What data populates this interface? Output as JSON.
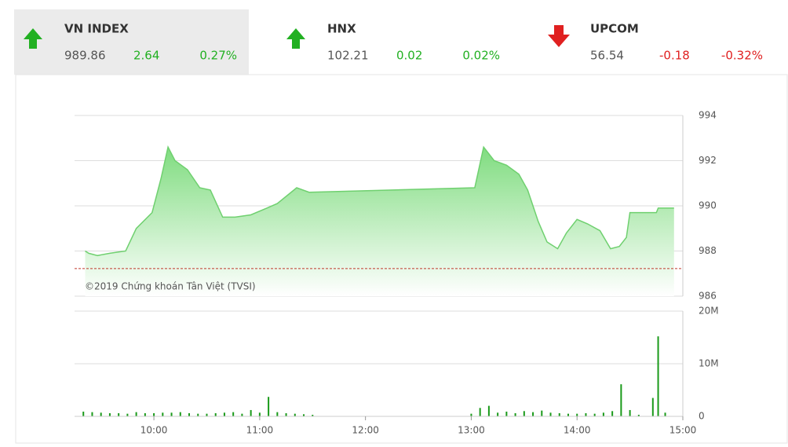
{
  "indices": [
    {
      "name": "VN INDEX",
      "value": "989.86",
      "change": "2.64",
      "percent": "0.27%",
      "direction": "up",
      "color": "#22b022"
    },
    {
      "name": "HNX",
      "value": "102.21",
      "change": "0.02",
      "percent": "0.02%",
      "direction": "up",
      "color": "#22b022"
    },
    {
      "name": "UPCOM",
      "value": "56.54",
      "change": "-0.18",
      "percent": "-0.32%",
      "direction": "down",
      "color": "#e02020"
    }
  ],
  "chart_data": [
    {
      "type": "area",
      "annotation": "©2019 Chứng khoán Tân Việt (TVSI)",
      "x": [
        "09:21",
        "09:23",
        "09:28",
        "09:35",
        "09:44",
        "09:50",
        "09:59",
        "10:04",
        "10:08",
        "10:12",
        "10:19",
        "10:26",
        "10:32",
        "10:39",
        "10:46",
        "10:55",
        "11:04",
        "11:10",
        "11:21",
        "11:28",
        "13:02",
        "13:07",
        "13:13",
        "13:20",
        "13:27",
        "13:32",
        "13:38",
        "13:43",
        "13:49",
        "13:54",
        "14:00",
        "14:06",
        "14:13",
        "14:19",
        "14:24",
        "14:28",
        "14:30",
        "14:45",
        "14:46",
        "14:55"
      ],
      "values": [
        988.0,
        987.9,
        987.8,
        987.9,
        988.0,
        989.0,
        989.7,
        991.2,
        992.6,
        992.0,
        991.6,
        990.8,
        990.7,
        989.5,
        989.5,
        989.6,
        989.9,
        990.1,
        990.8,
        990.6,
        990.8,
        992.6,
        992.0,
        991.8,
        991.4,
        990.7,
        989.3,
        988.4,
        988.1,
        988.8,
        989.4,
        989.2,
        988.9,
        988.1,
        988.2,
        988.6,
        989.7,
        989.7,
        989.9,
        989.9
      ],
      "reference_line": 987.22,
      "color": "#6fd06f",
      "xlim": [
        "09:15",
        "15:00"
      ],
      "ylim": [
        986,
        994
      ],
      "yticks": [
        986,
        988,
        990,
        992,
        994
      ],
      "grid": true
    },
    {
      "type": "bar",
      "x": [
        "09:20",
        "09:25",
        "09:30",
        "09:35",
        "09:40",
        "09:45",
        "09:50",
        "09:55",
        "10:00",
        "10:05",
        "10:10",
        "10:15",
        "10:20",
        "10:25",
        "10:30",
        "10:35",
        "10:40",
        "10:45",
        "10:50",
        "10:55",
        "11:00",
        "11:05",
        "11:10",
        "11:15",
        "11:20",
        "11:25",
        "11:30",
        "13:00",
        "13:05",
        "13:10",
        "13:15",
        "13:20",
        "13:25",
        "13:30",
        "13:35",
        "13:40",
        "13:45",
        "13:50",
        "13:55",
        "14:00",
        "14:05",
        "14:10",
        "14:15",
        "14:20",
        "14:25",
        "14:30",
        "14:35",
        "14:43",
        "14:46",
        "14:50"
      ],
      "values": [
        900000,
        800000,
        700000,
        600000,
        600000,
        500000,
        800000,
        600000,
        600000,
        700000,
        700000,
        800000,
        600000,
        500000,
        500000,
        600000,
        700000,
        800000,
        500000,
        1200000,
        700000,
        3700000,
        800000,
        600000,
        500000,
        400000,
        300000,
        500000,
        1600000,
        2000000,
        700000,
        900000,
        600000,
        1000000,
        800000,
        1100000,
        700000,
        600000,
        500000,
        500000,
        600000,
        500000,
        700000,
        1000000,
        6100000,
        1200000,
        300000,
        3500000,
        15200000,
        700000
      ],
      "color": "#1a9a1a",
      "xlim": [
        "09:15",
        "15:00"
      ],
      "xticks": [
        "10:00",
        "11:00",
        "12:00",
        "13:00",
        "14:00",
        "15:00"
      ],
      "ylim": [
        0,
        20000000
      ],
      "yticks": [
        0,
        {
          "value": 10000000,
          "label": "10M"
        },
        {
          "value": 20000000,
          "label": "20M"
        }
      ],
      "grid": true
    }
  ]
}
